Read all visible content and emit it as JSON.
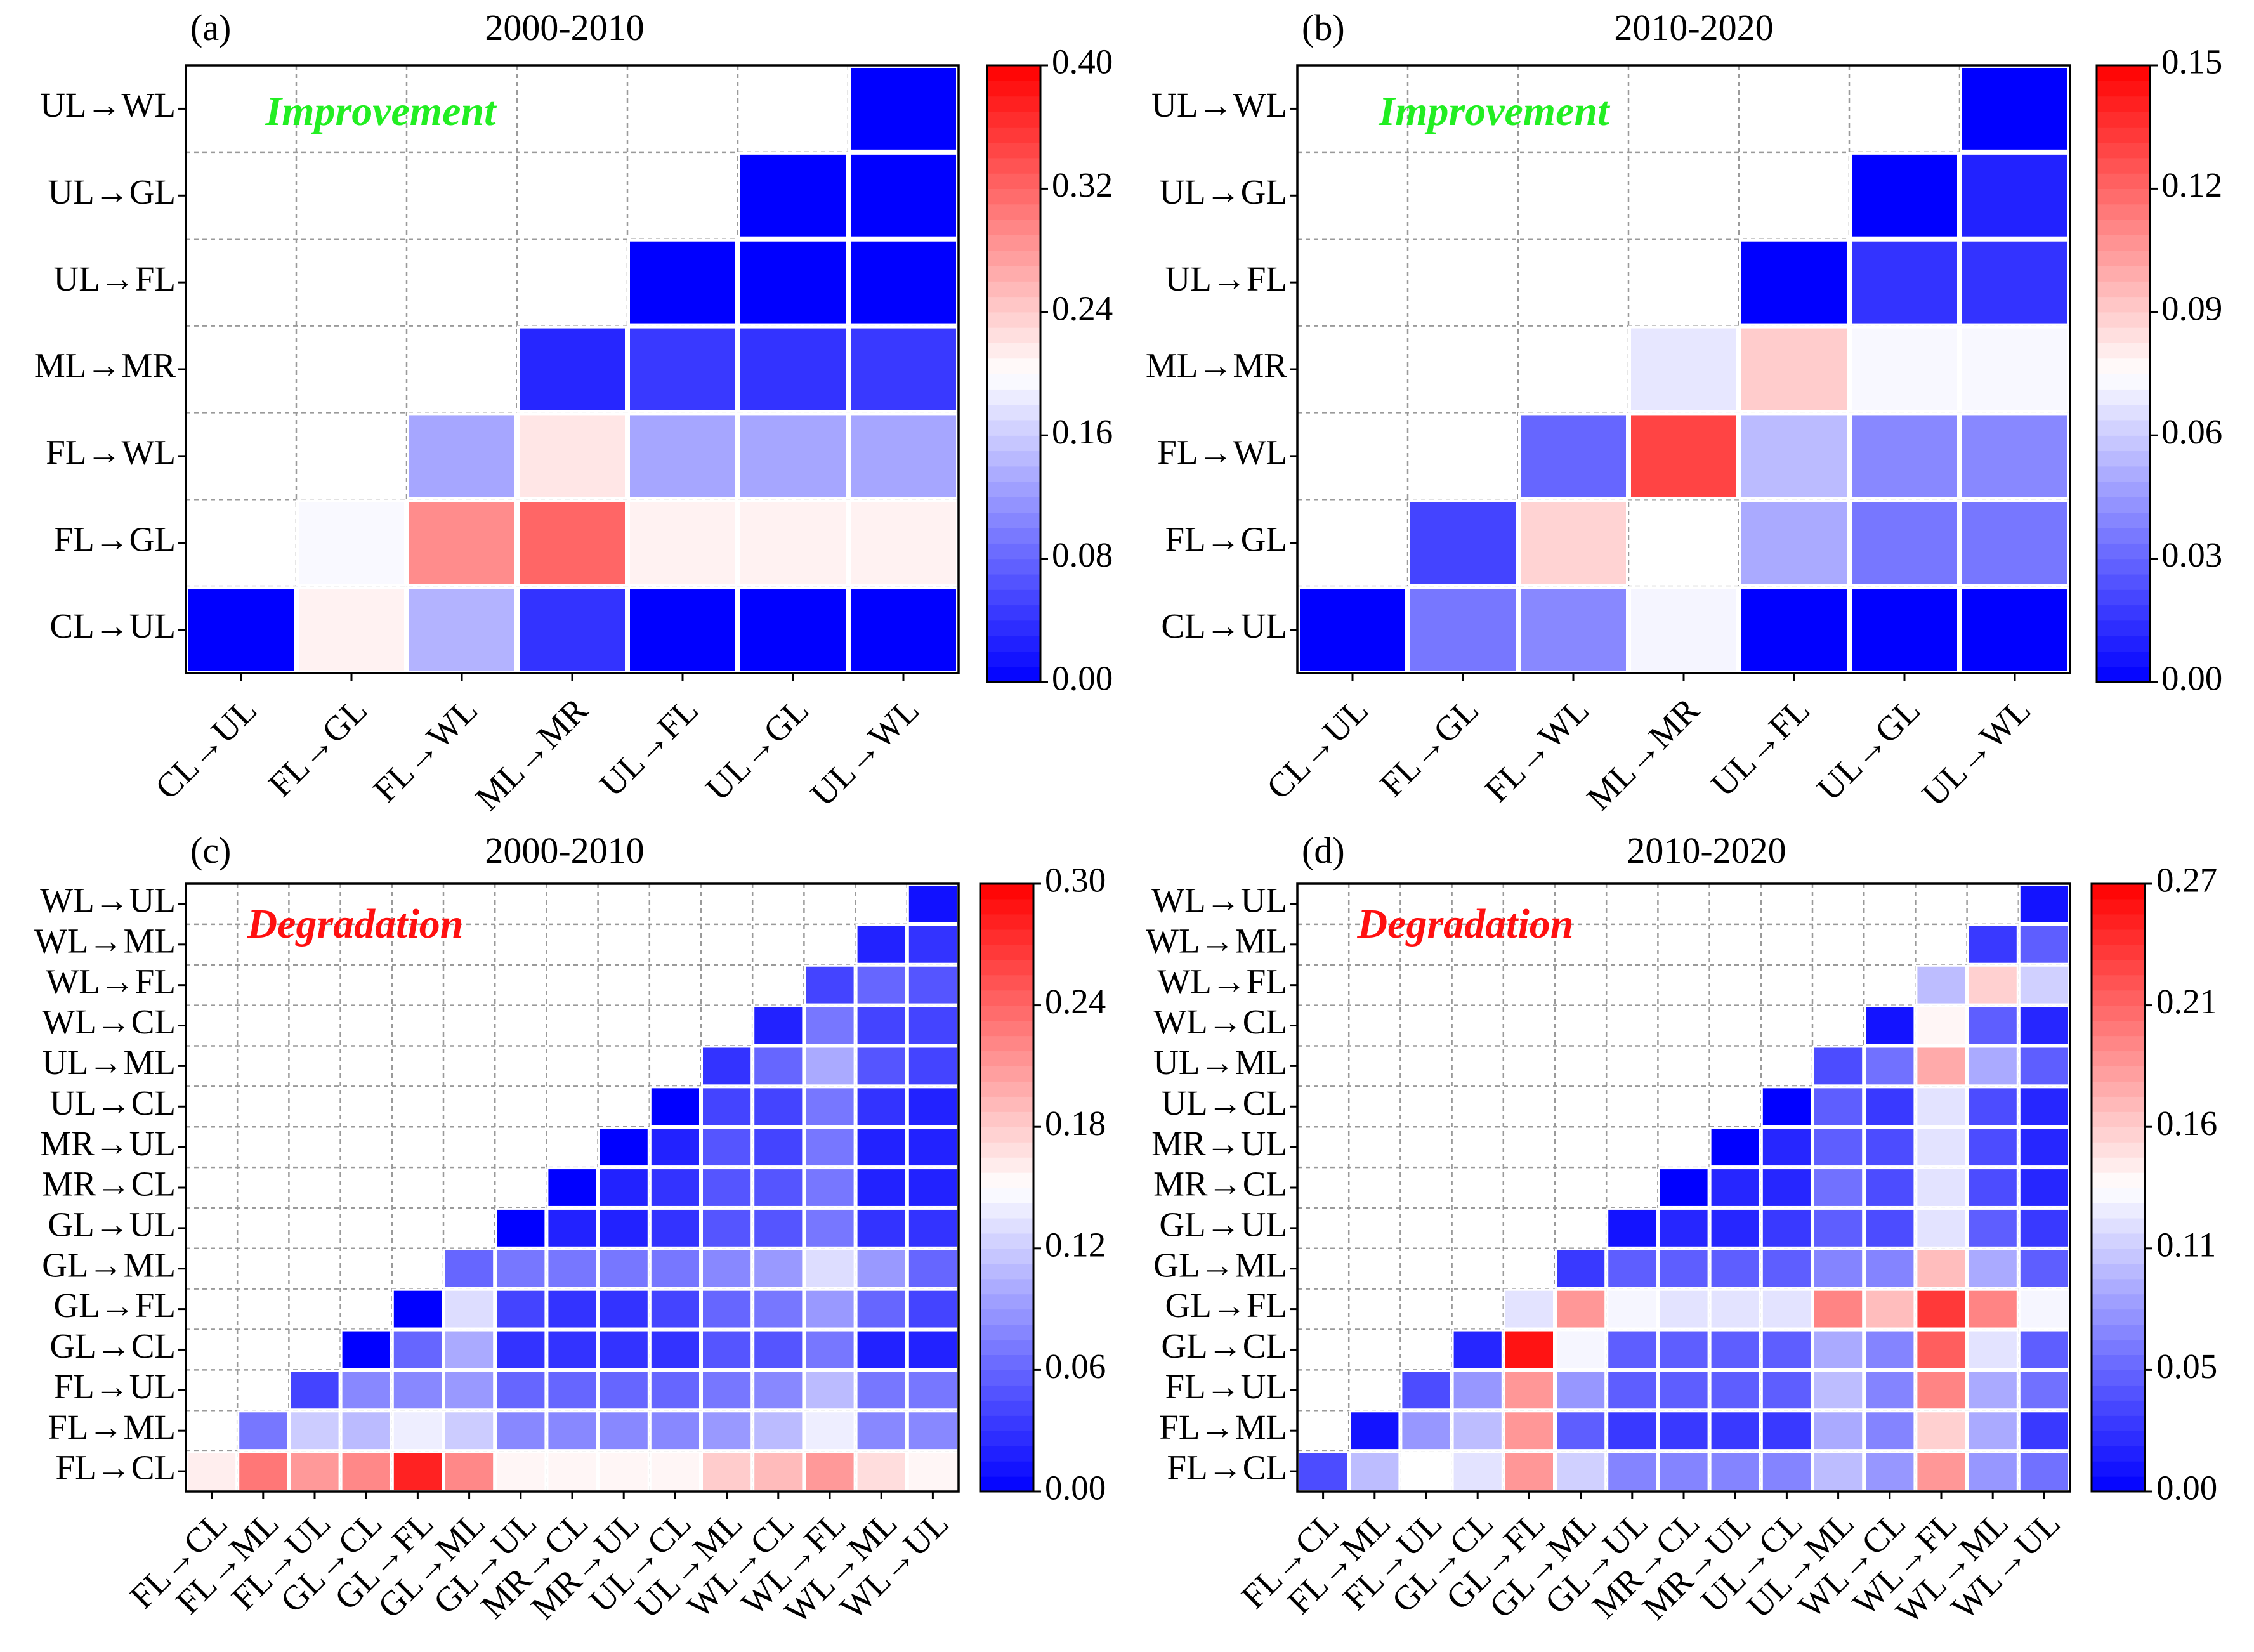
{
  "colors": {
    "low": "#0000ff",
    "mid": "#ffffff",
    "high": "#ff0000",
    "improvement": "#22ee22",
    "degradation": "#ff1010"
  },
  "chart_data": [
    {
      "type": "heatmap",
      "letter": "(a)",
      "title": "2000-2010",
      "annotation": "Improvement",
      "annotation_color": "improvement",
      "x_labels": [
        "CL→UL",
        "FL→GL",
        "FL→WL",
        "ML→MR",
        "UL→FL",
        "UL→GL",
        "UL→WL"
      ],
      "y_labels_bottom_to_top": [
        "CL→UL",
        "FL→GL",
        "FL→WL",
        "ML→MR",
        "UL→FL",
        "UL→GL",
        "UL→WL"
      ],
      "vmin": 0.0,
      "vmax": 0.4,
      "colorbar_ticks": [
        "0.00",
        "0.08",
        "0.16",
        "0.24",
        "0.32",
        "0.40"
      ],
      "rows_bottom_to_top": [
        [
          0.0,
          0.21,
          0.14,
          0.04,
          0.0,
          0.0,
          0.0
        ],
        [
          null,
          0.195,
          0.29,
          0.32,
          0.21,
          0.21,
          0.21
        ],
        [
          null,
          null,
          0.13,
          0.22,
          0.13,
          0.13,
          0.13
        ],
        [
          null,
          null,
          null,
          0.03,
          0.045,
          0.04,
          0.045
        ],
        [
          null,
          null,
          null,
          null,
          0.0,
          0.0,
          0.0
        ],
        [
          null,
          null,
          null,
          null,
          null,
          0.0,
          0.0
        ],
        [
          null,
          null,
          null,
          null,
          null,
          null,
          0.0
        ]
      ]
    },
    {
      "type": "heatmap",
      "letter": "(b)",
      "title": "2010-2020",
      "annotation": "Improvement",
      "annotation_color": "improvement",
      "x_labels": [
        "CL→UL",
        "FL→GL",
        "FL→WL",
        "ML→MR",
        "UL→FL",
        "UL→GL",
        "UL→WL"
      ],
      "y_labels_bottom_to_top": [
        "CL→UL",
        "FL→GL",
        "FL→WL",
        "ML→MR",
        "UL→FL",
        "UL→GL",
        "UL→WL"
      ],
      "vmin": 0.0,
      "vmax": 0.15,
      "colorbar_ticks": [
        "0.00",
        "0.03",
        "0.06",
        "0.09",
        "0.12",
        "0.15"
      ],
      "rows_bottom_to_top": [
        [
          0.0,
          0.035,
          0.04,
          0.072,
          0.0,
          0.0,
          0.0
        ],
        [
          null,
          0.02,
          0.088,
          null,
          0.05,
          0.035,
          0.035
        ],
        [
          null,
          null,
          0.03,
          0.13,
          0.055,
          0.04,
          0.04
        ],
        [
          null,
          null,
          null,
          0.068,
          0.09,
          0.073,
          0.073
        ],
        [
          null,
          null,
          null,
          null,
          0.0,
          0.015,
          0.015
        ],
        [
          null,
          null,
          null,
          null,
          null,
          0.0,
          0.01
        ],
        [
          null,
          null,
          null,
          null,
          null,
          null,
          0.0
        ]
      ]
    },
    {
      "type": "heatmap",
      "letter": "(c)",
      "title": "2000-2010",
      "annotation": "Degradation",
      "annotation_color": "degradation",
      "x_labels": [
        "FL→CL",
        "FL→ML",
        "FL→UL",
        "GL→CL",
        "GL→FL",
        "GL→ML",
        "GL→UL",
        "MR→CL",
        "MR→UL",
        "UL→CL",
        "UL→ML",
        "WL→CL",
        "WL→FL",
        "WL→ML",
        "WL→UL"
      ],
      "y_labels_bottom_to_top": [
        "FL→CL",
        "FL→ML",
        "FL→UL",
        "GL→CL",
        "GL→FL",
        "GL→ML",
        "GL→UL",
        "MR→CL",
        "MR→UL",
        "UL→CL",
        "UL→ML",
        "WL→CL",
        "WL→FL",
        "WL→ML",
        "WL→UL"
      ],
      "vmin": 0.0,
      "vmax": 0.3,
      "colorbar_ticks": [
        "0.00",
        "0.06",
        "0.12",
        "0.18",
        "0.24",
        "0.30"
      ],
      "rows_bottom_to_top": [
        [
          0.16,
          0.23,
          0.21,
          0.22,
          0.28,
          0.22,
          0.155,
          0.155,
          0.155,
          0.155,
          0.18,
          0.19,
          0.21,
          0.17,
          0.155
        ],
        [
          null,
          0.07,
          0.12,
          0.11,
          0.14,
          0.12,
          0.08,
          0.08,
          0.08,
          0.08,
          0.09,
          0.11,
          0.14,
          0.08,
          0.08
        ],
        [
          null,
          null,
          0.04,
          0.08,
          0.08,
          0.09,
          0.06,
          0.06,
          0.06,
          0.06,
          0.07,
          0.08,
          0.11,
          0.07,
          0.07
        ],
        [
          null,
          null,
          null,
          0.0,
          0.06,
          0.1,
          0.03,
          0.03,
          0.03,
          0.03,
          0.05,
          0.05,
          0.07,
          0.02,
          0.02
        ],
        [
          null,
          null,
          null,
          null,
          0.0,
          0.13,
          0.04,
          0.03,
          0.03,
          0.04,
          0.06,
          0.07,
          0.09,
          0.06,
          0.04
        ],
        [
          null,
          null,
          null,
          null,
          null,
          0.06,
          0.07,
          0.07,
          0.07,
          0.07,
          0.08,
          0.09,
          0.13,
          0.09,
          0.06
        ],
        [
          null,
          null,
          null,
          null,
          null,
          null,
          0.0,
          0.02,
          0.02,
          0.03,
          0.05,
          0.05,
          0.07,
          0.03,
          0.03
        ],
        [
          null,
          null,
          null,
          null,
          null,
          null,
          null,
          0.0,
          0.02,
          0.03,
          0.05,
          0.05,
          0.07,
          0.02,
          0.02
        ],
        [
          null,
          null,
          null,
          null,
          null,
          null,
          null,
          null,
          0.0,
          0.02,
          0.05,
          0.04,
          0.07,
          0.02,
          0.02
        ],
        [
          null,
          null,
          null,
          null,
          null,
          null,
          null,
          null,
          null,
          0.0,
          0.04,
          0.04,
          0.07,
          0.03,
          0.02
        ],
        [
          null,
          null,
          null,
          null,
          null,
          null,
          null,
          null,
          null,
          null,
          0.03,
          0.06,
          0.1,
          0.05,
          0.04
        ],
        [
          null,
          null,
          null,
          null,
          null,
          null,
          null,
          null,
          null,
          null,
          null,
          0.02,
          0.07,
          0.04,
          0.04
        ],
        [
          null,
          null,
          null,
          null,
          null,
          null,
          null,
          null,
          null,
          null,
          null,
          null,
          0.04,
          0.06,
          0.05
        ],
        [
          null,
          null,
          null,
          null,
          null,
          null,
          null,
          null,
          null,
          null,
          null,
          null,
          null,
          0.02,
          0.03
        ],
        [
          null,
          null,
          null,
          null,
          null,
          null,
          null,
          null,
          null,
          null,
          null,
          null,
          null,
          null,
          0.01
        ]
      ]
    },
    {
      "type": "heatmap",
      "letter": "(d)",
      "title": "2010-2020",
      "annotation": "Degradation",
      "annotation_color": "degradation",
      "x_labels": [
        "FL→CL",
        "FL→ML",
        "FL→UL",
        "GL→CL",
        "GL→FL",
        "GL→ML",
        "GL→UL",
        "MR→CL",
        "MR→UL",
        "UL→CL",
        "UL→ML",
        "WL→CL",
        "WL→FL",
        "WL→ML",
        "WL→UL"
      ],
      "y_labels_bottom_to_top": [
        "FL→CL",
        "FL→ML",
        "FL→UL",
        "GL→CL",
        "GL→FL",
        "GL→ML",
        "GL→UL",
        "MR→CL",
        "MR→UL",
        "UL→CL",
        "UL→ML",
        "WL→CL",
        "WL→FL",
        "WL→ML",
        "WL→UL"
      ],
      "vmin": 0.0,
      "vmax": 0.27,
      "colorbar_ticks": [
        "0.00",
        "0.05",
        "0.11",
        "0.16",
        "0.21",
        "0.27"
      ],
      "rows_bottom_to_top": [
        [
          0.04,
          0.1,
          0.135,
          0.12,
          0.19,
          0.11,
          0.07,
          0.07,
          0.07,
          0.07,
          0.1,
          0.08,
          0.19,
          0.08,
          0.06
        ],
        [
          null,
          0.01,
          0.08,
          0.1,
          0.19,
          0.05,
          0.03,
          0.03,
          0.03,
          0.03,
          0.09,
          0.07,
          0.16,
          0.09,
          0.03
        ],
        [
          null,
          null,
          0.04,
          0.08,
          0.19,
          0.08,
          0.05,
          0.05,
          0.05,
          0.05,
          0.1,
          0.07,
          0.2,
          0.09,
          0.06
        ],
        [
          null,
          null,
          null,
          0.02,
          0.26,
          0.13,
          0.05,
          0.05,
          0.05,
          0.05,
          0.09,
          0.07,
          0.22,
          0.12,
          0.05
        ],
        [
          null,
          null,
          null,
          null,
          0.12,
          0.19,
          0.13,
          0.12,
          0.12,
          0.12,
          0.2,
          0.17,
          0.24,
          0.2,
          0.13
        ],
        [
          null,
          null,
          null,
          null,
          null,
          0.03,
          0.05,
          0.05,
          0.05,
          0.05,
          0.07,
          0.07,
          0.17,
          0.09,
          0.05
        ],
        [
          null,
          null,
          null,
          null,
          null,
          null,
          0.01,
          0.02,
          0.02,
          0.03,
          0.05,
          0.04,
          0.12,
          0.05,
          0.03
        ],
        [
          null,
          null,
          null,
          null,
          null,
          null,
          null,
          0.0,
          0.02,
          0.02,
          0.06,
          0.04,
          0.12,
          0.04,
          0.02
        ],
        [
          null,
          null,
          null,
          null,
          null,
          null,
          null,
          null,
          0.0,
          0.02,
          0.05,
          0.04,
          0.12,
          0.04,
          0.02
        ],
        [
          null,
          null,
          null,
          null,
          null,
          null,
          null,
          null,
          null,
          0.0,
          0.05,
          0.03,
          0.12,
          0.04,
          0.02
        ],
        [
          null,
          null,
          null,
          null,
          null,
          null,
          null,
          null,
          null,
          null,
          0.04,
          0.06,
          0.18,
          0.09,
          0.05
        ],
        [
          null,
          null,
          null,
          null,
          null,
          null,
          null,
          null,
          null,
          null,
          null,
          0.01,
          0.14,
          0.05,
          0.02
        ],
        [
          null,
          null,
          null,
          null,
          null,
          null,
          null,
          null,
          null,
          null,
          null,
          null,
          0.1,
          0.16,
          0.11
        ],
        [
          null,
          null,
          null,
          null,
          null,
          null,
          null,
          null,
          null,
          null,
          null,
          null,
          null,
          0.03,
          0.05
        ],
        [
          null,
          null,
          null,
          null,
          null,
          null,
          null,
          null,
          null,
          null,
          null,
          null,
          null,
          null,
          0.01
        ]
      ]
    }
  ]
}
